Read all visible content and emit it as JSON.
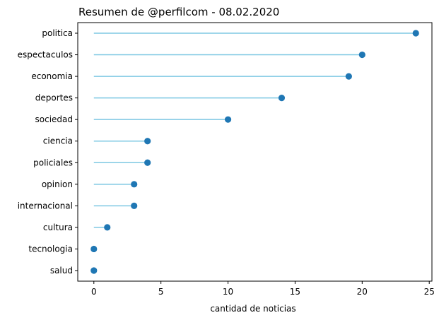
{
  "chart_data": {
    "type": "lollipop",
    "orientation": "horizontal",
    "title": "Resumen de @perfilcom - 08.02.2020",
    "xlabel": "cantidad de noticias",
    "ylabel": "",
    "xlim": [
      -1.2,
      25.2
    ],
    "xticks": [
      "0",
      "5",
      "10",
      "15",
      "20",
      "25"
    ],
    "grid": false,
    "categories": [
      "politica",
      "espectaculos",
      "economia",
      "deportes",
      "sociedad",
      "ciencia",
      "policiales",
      "opinion",
      "internacional",
      "cultura",
      "tecnologia",
      "salud"
    ],
    "values": [
      24,
      20,
      19,
      14,
      10,
      4,
      4,
      3,
      3,
      1,
      0,
      0
    ],
    "stem_color": "#7ec8e3",
    "marker_color": "#1f77b4"
  }
}
